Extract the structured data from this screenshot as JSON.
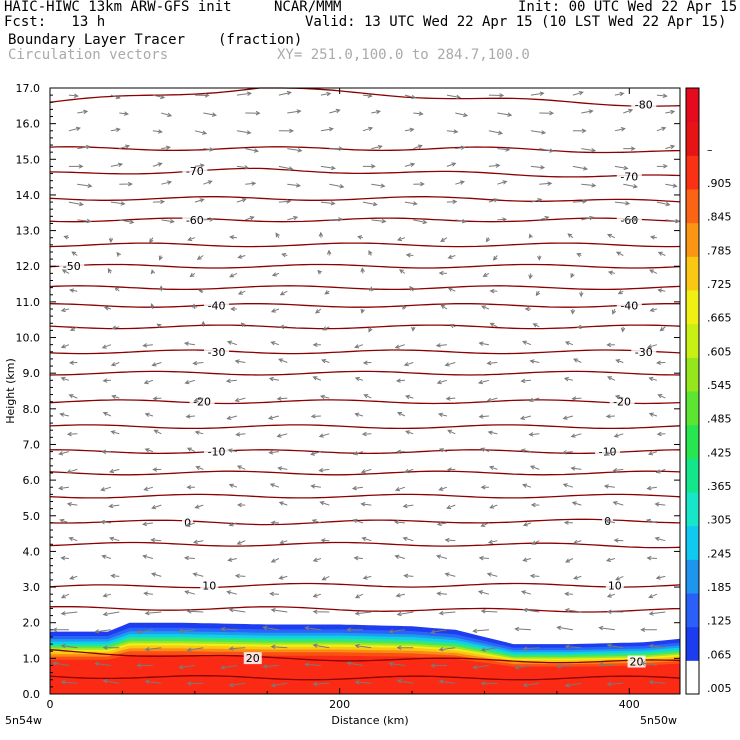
{
  "header": {
    "model": "HAIC-HIWC 13km ARW-GFS init",
    "org": "NCAR/MMM",
    "init": "Init: 00 UTC Wed 22 Apr 15",
    "fcst": "Fcst:   13 h",
    "valid": "Valid: 13 UTC Wed 22 Apr 15 (10 LST Wed 22 Apr 15)",
    "field": "Boundary Layer Tracer",
    "units": "(fraction)",
    "vectors": "Circulation vectors",
    "xy": "XY= 251.0,100.0 to 284.7,100.0"
  },
  "chart_data": {
    "type": "heatmap",
    "title": "Boundary Layer Tracer (fraction)",
    "xlabel": "Distance (km)",
    "ylabel": "Height (km)",
    "xlim": [
      0,
      435
    ],
    "ylim": [
      0,
      17
    ],
    "x_ticks": [
      "0",
      "200",
      "400"
    ],
    "x_end_labels": [
      "5n54w",
      "5n50w"
    ],
    "y_ticks": [
      "0.0",
      "1.0",
      "2.0",
      "3.0",
      "4.0",
      "5.0",
      "6.0",
      "7.0",
      "8.0",
      "9.0",
      "10.0",
      "11.0",
      "12.0",
      "13.0",
      "14.0",
      "15.0",
      "16.0",
      "17.0"
    ],
    "colorbar": {
      "labels": [
        ".005",
        ".065",
        ".125",
        ".185",
        ".245",
        ".305",
        ".365",
        ".425",
        ".485",
        ".545",
        ".605",
        ".665",
        ".725",
        ".785",
        ".845",
        ".905",
        "–"
      ],
      "colors": [
        "#ffffff",
        "#1c3cf0",
        "#2a60f8",
        "#1e96f0",
        "#10c8f0",
        "#18e6c8",
        "#14e68c",
        "#28e650",
        "#5ce632",
        "#96e61e",
        "#c8f014",
        "#f0f014",
        "#fac814",
        "#fa9614",
        "#fa6414",
        "#fa3214",
        "#e61414",
        "#e60a1e"
      ]
    },
    "tracer_top_km": [
      [
        0,
        1.75
      ],
      [
        40,
        1.75
      ],
      [
        55,
        2.0
      ],
      [
        90,
        2.0
      ],
      [
        150,
        1.95
      ],
      [
        200,
        1.95
      ],
      [
        250,
        1.9
      ],
      [
        280,
        1.8
      ],
      [
        320,
        1.4
      ],
      [
        360,
        1.4
      ],
      [
        410,
        1.45
      ],
      [
        435,
        1.55
      ]
    ],
    "isotherms": [
      {
        "label": "-80",
        "y": [
          16.6,
          17.0,
          16.7,
          16.5
        ],
        "label_at": 410
      },
      {
        "label": "",
        "y": [
          15.3,
          15.3,
          15.3,
          15.2
        ]
      },
      {
        "label": "-70",
        "y": [
          14.6,
          14.7,
          14.6,
          14.5
        ],
        "label_at": [
          100,
          400
        ]
      },
      {
        "label": "",
        "y": [
          13.9,
          13.9,
          13.9,
          13.8
        ]
      },
      {
        "label": "-60",
        "y": [
          13.3,
          13.3,
          13.3,
          13.3
        ],
        "label_at": [
          100,
          400
        ]
      },
      {
        "label": "",
        "y": [
          12.6,
          12.6,
          12.6,
          12.6
        ]
      },
      {
        "label": "-50",
        "y": [
          12.0,
          12.0,
          12.0,
          12.0
        ],
        "label_at": 15
      },
      {
        "label": "",
        "y": [
          11.4,
          11.4,
          11.4,
          11.4
        ]
      },
      {
        "label": "-40",
        "y": [
          10.9,
          10.9,
          10.9,
          10.9
        ],
        "label_at": [
          115,
          400
        ]
      },
      {
        "label": "",
        "y": [
          10.3,
          10.3,
          10.3,
          10.3
        ]
      },
      {
        "label": "-30",
        "y": [
          9.6,
          9.6,
          9.6,
          9.6
        ],
        "label_at": [
          115,
          410
        ]
      },
      {
        "label": "",
        "y": [
          9.0,
          9.0,
          9.0,
          9.0
        ]
      },
      {
        "label": "-20",
        "y": [
          8.2,
          8.2,
          8.2,
          8.2
        ],
        "label_at": [
          105,
          395
        ]
      },
      {
        "label": "",
        "y": [
          7.5,
          7.5,
          7.5,
          7.5
        ]
      },
      {
        "label": "-10",
        "y": [
          6.8,
          6.8,
          6.8,
          6.8
        ],
        "label_at": [
          115,
          385
        ]
      },
      {
        "label": "",
        "y": [
          6.2,
          6.2,
          6.2,
          6.2
        ]
      },
      {
        "label": "",
        "y": [
          5.55,
          5.55,
          5.55,
          5.55
        ]
      },
      {
        "label": "0",
        "y": [
          4.85,
          4.8,
          4.85,
          4.85
        ],
        "label_at": [
          95,
          385
        ]
      },
      {
        "label": "",
        "y": [
          4.2,
          4.2,
          4.2,
          4.15
        ]
      },
      {
        "label": "10",
        "y": [
          3.0,
          3.05,
          3.05,
          3.05
        ],
        "label_at": [
          110,
          390
        ]
      },
      {
        "label": "",
        "y": [
          2.4,
          2.4,
          2.35,
          2.35
        ]
      },
      {
        "label": "20",
        "y": [
          1.2,
          1.0,
          0.95,
          0.9
        ],
        "label_at": [
          140,
          405
        ]
      },
      {
        "label": "",
        "y": [
          0.5,
          0.45,
          0.45,
          0.45
        ]
      }
    ],
    "wind_u": "westerly aloft above ~13 km, easterly below; strongest easterlies near surface"
  }
}
